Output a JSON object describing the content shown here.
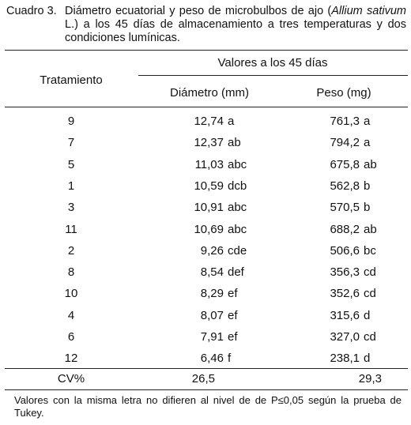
{
  "caption": {
    "label": "Cuadro 3.",
    "text_before": "Diámetro ecuatorial y peso de microbulbos de ajo (",
    "italic": "Allium sativum",
    "text_after": " L.) a los 45 días de almacenamiento a tres temperaturas y dos condiciones lumínicas."
  },
  "table": {
    "header": {
      "treatment": "Tratamiento",
      "group": "Valores a los 45 días",
      "diameter": "Diámetro (mm)",
      "weight": "Peso (mg)"
    },
    "rows": [
      [
        "9",
        {
          "value": "12,74",
          "letters": "a"
        },
        {
          "value": "761,3",
          "letters": "a"
        }
      ],
      [
        "7",
        {
          "value": "12,37",
          "letters": "ab"
        },
        {
          "value": "794,2",
          "letters": "a"
        }
      ],
      [
        "5",
        {
          "value": "11,03",
          "letters": "abc"
        },
        {
          "value": "675,8",
          "letters": "ab"
        }
      ],
      [
        "1",
        {
          "value": "10,59",
          "letters": "dcb"
        },
        {
          "value": "562,8",
          "letters": "b"
        }
      ],
      [
        "3",
        {
          "value": "10,91",
          "letters": "abc"
        },
        {
          "value": "570,5",
          "letters": "b"
        }
      ],
      [
        "11",
        {
          "value": "10,69",
          "letters": "abc"
        },
        {
          "value": "688,2",
          "letters": "ab"
        }
      ],
      [
        "2",
        {
          "value": "9,26",
          "letters": "cde"
        },
        {
          "value": "506,6",
          "letters": "bc"
        }
      ],
      [
        "8",
        {
          "value": "8,54",
          "letters": "def"
        },
        {
          "value": "356,3",
          "letters": "cd"
        }
      ],
      [
        "10",
        {
          "value": "8,29",
          "letters": "ef"
        },
        {
          "value": "352,6",
          "letters": "cd"
        }
      ],
      [
        "4",
        {
          "value": "8,07",
          "letters": "ef"
        },
        {
          "value": "315,6",
          "letters": "d"
        }
      ],
      [
        "6",
        {
          "value": "7,91",
          "letters": "ef"
        },
        {
          "value": "327,0",
          "letters": "cd"
        }
      ],
      [
        "12",
        {
          "value": "6,46",
          "letters": "f"
        },
        {
          "value": "238,1",
          "letters": "d"
        }
      ]
    ],
    "cv": [
      "CV%",
      "26,5",
      "29,3"
    ]
  },
  "footnote": "Valores con la misma letra no difieren al nivel de de P≤0,05 según la prueba de Tukey."
}
